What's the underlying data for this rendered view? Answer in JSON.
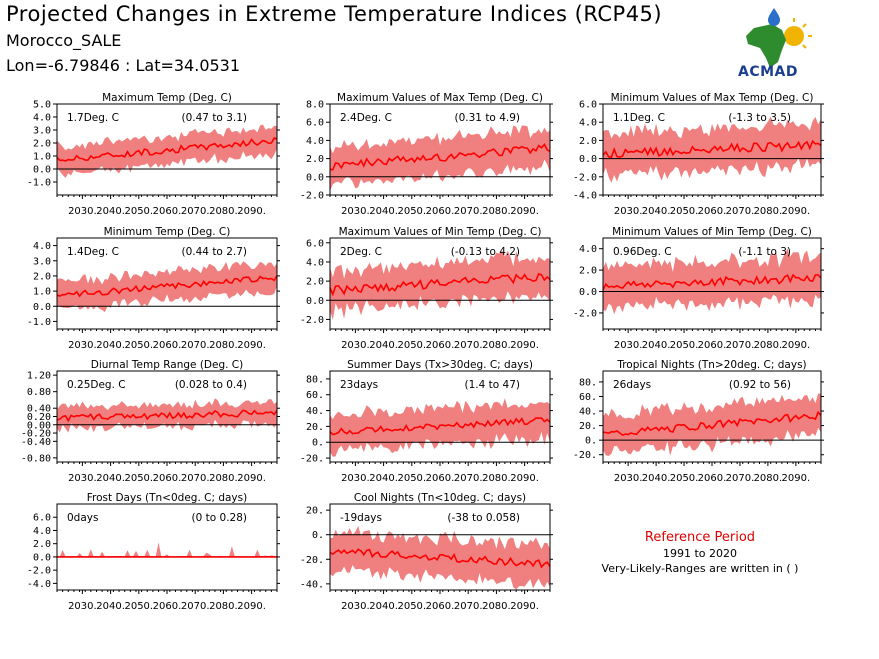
{
  "header": {
    "title": "Projected Changes in Extreme Temperature Indices (RCP45)",
    "region": "Morocco_SALE",
    "coords": "Lon=-6.79846 : Lat=34.0531"
  },
  "logo": {
    "text": "ACMAD",
    "colors": {
      "africa": "#2e8b2e",
      "drop": "#2a6fc9",
      "sun": "#f0b400",
      "text": "#1b3f8f"
    }
  },
  "reference": {
    "title": "Reference Period",
    "period": "1991 to 2020",
    "note": "Very-Likely-Ranges are written in ( )"
  },
  "colors": {
    "band": "#f08080",
    "line": "#ff0000",
    "zero": "#000000"
  },
  "chart_data": [
    {
      "type": "line",
      "title": "Maximum Temp (Deg. C)",
      "summary": "1.7Deg. C",
      "range": "(0.47 to 3.1)",
      "x_start": 2021,
      "x_end": 2099,
      "ylim": [
        -2.0,
        5.0
      ],
      "yticks": [
        -1.0,
        0.0,
        1.0,
        2.0,
        3.0,
        4.0,
        5.0
      ],
      "ytick_labels": [
        "-1.0",
        "0.0",
        "1.0",
        "2.0",
        "3.0",
        "4.0",
        "5.0"
      ],
      "median_start": 0.7,
      "median_end": 2.2,
      "band_half": 1.0,
      "noise": 0.25,
      "xtick_labels": [
        "2030.",
        "2040.",
        "2050.",
        "2060.",
        "2070.",
        "2080.",
        "2090."
      ]
    },
    {
      "type": "line",
      "title": "Maximum Values of Max Temp (Deg. C)",
      "summary": "2.4Deg. C",
      "range": "(0.31 to 4.9)",
      "x_start": 2021,
      "x_end": 2099,
      "ylim": [
        -2.0,
        8.0
      ],
      "yticks": [
        -2.0,
        0.0,
        2.0,
        4.0,
        6.0,
        8.0
      ],
      "ytick_labels": [
        "-2.0",
        "0.0",
        "2.0",
        "4.0",
        "6.0",
        "8.0"
      ],
      "median_start": 1.2,
      "median_end": 3.2,
      "band_half": 2.0,
      "noise": 0.5,
      "xtick_labels": [
        "2030.",
        "2040.",
        "2050.",
        "2060.",
        "2070.",
        "2080.",
        "2090."
      ]
    },
    {
      "type": "line",
      "title": "Minimum Values of Max Temp (Deg. C)",
      "summary": "1.1Deg. C",
      "range": "(-1.3 to 3.5)",
      "x_start": 2021,
      "x_end": 2099,
      "ylim": [
        -4.0,
        6.0
      ],
      "yticks": [
        -4.0,
        -2.0,
        0.0,
        2.0,
        4.0,
        6.0
      ],
      "ytick_labels": [
        "-4.0",
        "-2.0",
        "0.0",
        "2.0",
        "4.0",
        "6.0"
      ],
      "median_start": 0.5,
      "median_end": 1.5,
      "band_half": 2.2,
      "noise": 0.5,
      "xtick_labels": [
        "2030.",
        "2040.",
        "2050.",
        "2060.",
        "2070.",
        "2080.",
        "2090."
      ]
    },
    {
      "type": "line",
      "title": "Minimum Temp (Deg. C)",
      "summary": "1.4Deg. C",
      "range": "(0.44 to 2.7)",
      "x_start": 2021,
      "x_end": 2099,
      "ylim": [
        -1.5,
        4.5
      ],
      "yticks": [
        -1.0,
        0.0,
        1.0,
        2.0,
        3.0,
        4.0
      ],
      "ytick_labels": [
        "-1.0",
        "0.0",
        "1.0",
        "2.0",
        "3.0",
        "4.0"
      ],
      "median_start": 0.7,
      "median_end": 1.9,
      "band_half": 0.9,
      "noise": 0.2,
      "xtick_labels": [
        "2030.",
        "2040.",
        "2050.",
        "2060.",
        "2070.",
        "2080.",
        "2090."
      ]
    },
    {
      "type": "line",
      "title": "Maximum Values of Min Temp (Deg. C)",
      "summary": "2Deg. C",
      "range": "(-0.13 to 4.2)",
      "x_start": 2021,
      "x_end": 2099,
      "ylim": [
        -3.0,
        6.5
      ],
      "yticks": [
        -2.0,
        0.0,
        2.0,
        4.0,
        6.0
      ],
      "ytick_labels": [
        "-2.0",
        "0.0",
        "2.0",
        "4.0",
        "6.0"
      ],
      "median_start": 1.0,
      "median_end": 2.5,
      "band_half": 2.0,
      "noise": 0.45,
      "xtick_labels": [
        "2030.",
        "2040.",
        "2050.",
        "2060.",
        "2070.",
        "2080.",
        "2090."
      ]
    },
    {
      "type": "line",
      "title": "Minimum Values of Min Temp (Deg. C)",
      "summary": "0.96Deg. C",
      "range": "(-1.1 to 3)",
      "x_start": 2021,
      "x_end": 2099,
      "ylim": [
        -3.5,
        5.0
      ],
      "yticks": [
        -2.0,
        0.0,
        2.0,
        4.0
      ],
      "ytick_labels": [
        "-2.0",
        "0.0",
        "2.0",
        "4.0"
      ],
      "median_start": 0.5,
      "median_end": 1.3,
      "band_half": 1.9,
      "noise": 0.4,
      "xtick_labels": [
        "2030.",
        "2040.",
        "2050.",
        "2060.",
        "2070.",
        "2080.",
        "2090."
      ]
    },
    {
      "type": "line",
      "title": "Diurnal Temp Range (Deg. C)",
      "summary": "0.25Deg. C",
      "range": "(0.028 to 0.4)",
      "x_start": 2021,
      "x_end": 2099,
      "ylim": [
        -0.9,
        1.3
      ],
      "yticks": [
        -0.8,
        -0.4,
        -0.2,
        0.0,
        0.2,
        0.4,
        0.8,
        1.2
      ],
      "ytick_labels": [
        "-0.80",
        "-0.40",
        "-0.20",
        "0.00",
        "0.20",
        "0.40",
        "0.80",
        "1.20"
      ],
      "median_start": 0.15,
      "median_end": 0.3,
      "band_half": 0.25,
      "noise": 0.08,
      "xtick_labels": [
        "2030.",
        "2040.",
        "2050.",
        "2060.",
        "2070.",
        "2080.",
        "2090."
      ]
    },
    {
      "type": "line",
      "title": "Summer Days (Tx>30deg. C; days)",
      "summary": "23days",
      "range": "(1.4 to 47)",
      "x_start": 2021,
      "x_end": 2099,
      "ylim": [
        -25,
        90
      ],
      "yticks": [
        -20,
        0,
        20,
        40,
        60,
        80
      ],
      "ytick_labels": [
        "-20.",
        "0.",
        "20.",
        "40.",
        "60.",
        "80."
      ],
      "median_start": 13,
      "median_end": 28,
      "band_half": 22,
      "noise": 4,
      "xtick_labels": [
        "2030.",
        "2040.",
        "2050.",
        "2060.",
        "2070.",
        "2080.",
        "2090."
      ]
    },
    {
      "type": "line",
      "title": "Tropical Nights (Tn>20deg. C; days)",
      "summary": "26days",
      "range": "(0.92 to 56)",
      "x_start": 2021,
      "x_end": 2099,
      "ylim": [
        -30,
        95
      ],
      "yticks": [
        -20,
        0,
        20,
        40,
        60,
        80
      ],
      "ytick_labels": [
        "-20.",
        "0.",
        "20.",
        "40.",
        "60.",
        "80."
      ],
      "median_start": 8,
      "median_end": 34,
      "band_half": 25,
      "noise": 5,
      "xtick_labels": [
        "2030.",
        "2040.",
        "2050.",
        "2060.",
        "2070.",
        "2080.",
        "2090."
      ]
    },
    {
      "type": "line",
      "title": "Frost Days (Tn<0deg. C; days)",
      "summary": "0days",
      "range": "(0 to 0.28)",
      "x_start": 2021,
      "x_end": 2099,
      "ylim": [
        -5,
        8
      ],
      "yticks": [
        -4.0,
        -2.0,
        0.0,
        2.0,
        4.0,
        6.0
      ],
      "ytick_labels": [
        "-4.0",
        "-2.0",
        "0.0",
        "2.0",
        "4.0",
        "6.0"
      ],
      "median_start": 0,
      "median_end": 0,
      "band_half": 0.4,
      "noise": 0,
      "frost": true,
      "xtick_labels": [
        "2030.",
        "2040.",
        "2050.",
        "2060.",
        "2070.",
        "2080.",
        "2090."
      ]
    },
    {
      "type": "line",
      "title": "Cool Nights (Tn<10deg. C; days)",
      "summary": "-19days",
      "range": "(-38 to 0.058)",
      "x_start": 2021,
      "x_end": 2099,
      "ylim": [
        -45,
        25
      ],
      "yticks": [
        -40,
        -20,
        0,
        20
      ],
      "ytick_labels": [
        "-40.",
        "-20.",
        "0.",
        "20."
      ],
      "median_start": -13,
      "median_end": -24,
      "band_half": 15,
      "noise": 3,
      "xtick_labels": [
        "2030.",
        "2040.",
        "2050.",
        "2060.",
        "2070.",
        "2080.",
        "2090."
      ]
    }
  ]
}
